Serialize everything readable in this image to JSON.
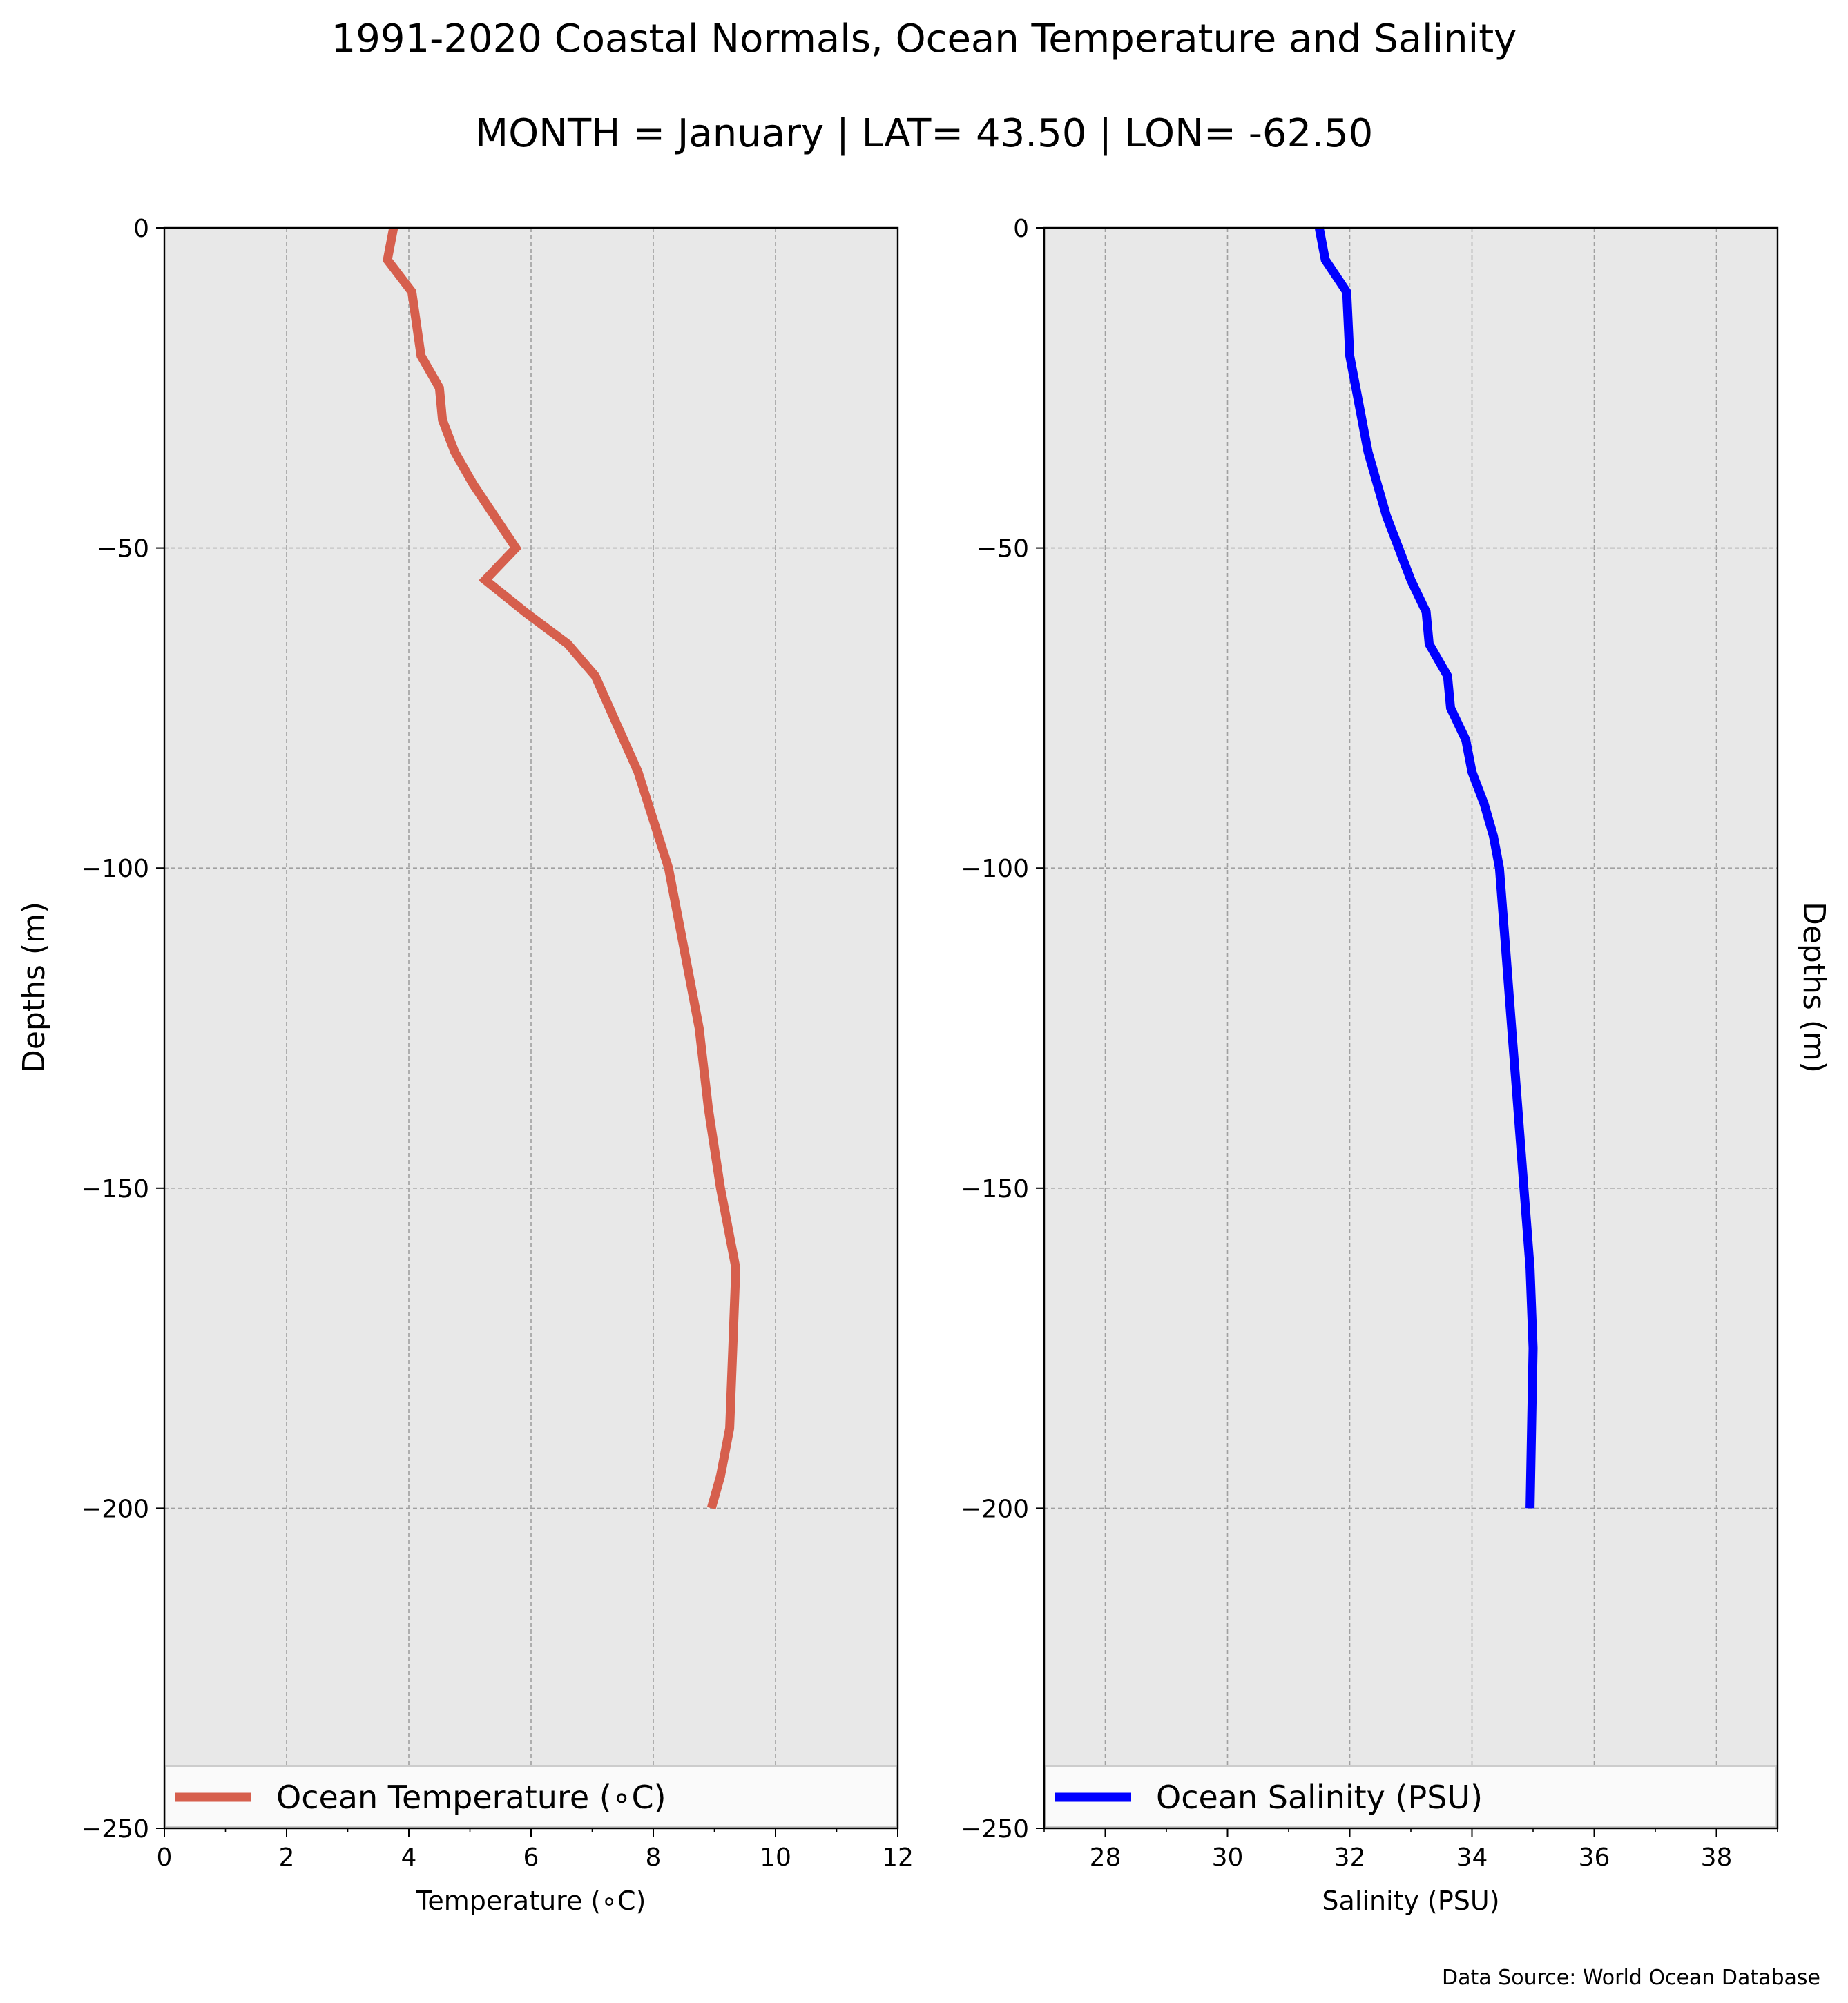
{
  "title": "1991-2020 Coastal Normals, Ocean Temperature and Salinity",
  "subtitle": "MONTH = January | LAT= 43.50 | LON= -62.50",
  "source": "Data Source: World Ocean Database",
  "colors": {
    "plot_background": "#e8e8e8",
    "grid": "#a0a0a0",
    "temperature": "#d65f4d",
    "salinity": "#0000ff"
  },
  "chart_data": [
    {
      "type": "line",
      "xlabel": "Temperature ($^\\circ$C)",
      "xlabel_display": "Temperature (∘C)",
      "ylabel": "Depths (m)",
      "xlim": [
        0,
        12
      ],
      "ylim": [
        -250,
        0
      ],
      "xticks": [
        0,
        2,
        4,
        6,
        8,
        10,
        12
      ],
      "xtick_labels": [
        "0",
        "2",
        "4",
        "6",
        "8",
        "10",
        "12"
      ],
      "yticks": [
        0,
        -50,
        -100,
        -150,
        -200,
        -250
      ],
      "ytick_labels": [
        "0",
        "−50",
        "−100",
        "−150",
        "−200",
        "−250"
      ],
      "grid": true,
      "legend_placement": "lower center",
      "series": [
        {
          "name": "Ocean Temperature (∘C)",
          "x": [
            3.75,
            3.65,
            4.05,
            4.2,
            4.5,
            4.55,
            4.75,
            5.05,
            5.4,
            5.75,
            5.25,
            5.9,
            6.6,
            7.05,
            7.4,
            7.75,
            8.0,
            8.25,
            8.5,
            8.75,
            8.9,
            9.1,
            9.35,
            9.3,
            9.25,
            9.1,
            8.95
          ],
          "y": [
            0,
            -5,
            -10,
            -20,
            -25,
            -30,
            -35,
            -40,
            -45,
            -50,
            -55,
            -60,
            -65,
            -70,
            -77.5,
            -85,
            -92.5,
            -100,
            -112.5,
            -125,
            -137.5,
            -150,
            -162.5,
            -175,
            -187.5,
            -195,
            -200
          ]
        }
      ]
    },
    {
      "type": "line",
      "xlabel": "Salinity (PSU)",
      "ylabel_right": "Depths (m)",
      "xlim": [
        27,
        39
      ],
      "ylim": [
        -250,
        0
      ],
      "xticks": [
        28,
        30,
        32,
        34,
        36,
        38
      ],
      "xtick_labels": [
        "28",
        "30",
        "32",
        "34",
        "36",
        "38"
      ],
      "yticks": [
        0,
        -50,
        -100,
        -150,
        -200,
        -250
      ],
      "ytick_labels": [
        "0",
        "−50",
        "−100",
        "−150",
        "−200",
        "−250"
      ],
      "grid": true,
      "legend_placement": "lower center",
      "series": [
        {
          "name": "Ocean Salinity (PSU)",
          "x": [
            31.5,
            31.6,
            31.95,
            32.0,
            32.1,
            32.2,
            32.3,
            32.45,
            32.6,
            32.8,
            33.0,
            33.25,
            33.3,
            33.6,
            33.65,
            33.9,
            34.0,
            34.2,
            34.35,
            34.45,
            34.55,
            34.65,
            34.75,
            34.85,
            34.95,
            35.0,
            34.95
          ],
          "y": [
            0,
            -5,
            -10,
            -20,
            -25,
            -30,
            -35,
            -40,
            -45,
            -50,
            -55,
            -60,
            -65,
            -70,
            -75,
            -80,
            -85,
            -90,
            -95,
            -100,
            -112.5,
            -125,
            -137.5,
            -150,
            -162.5,
            -175,
            -200
          ]
        }
      ]
    }
  ]
}
